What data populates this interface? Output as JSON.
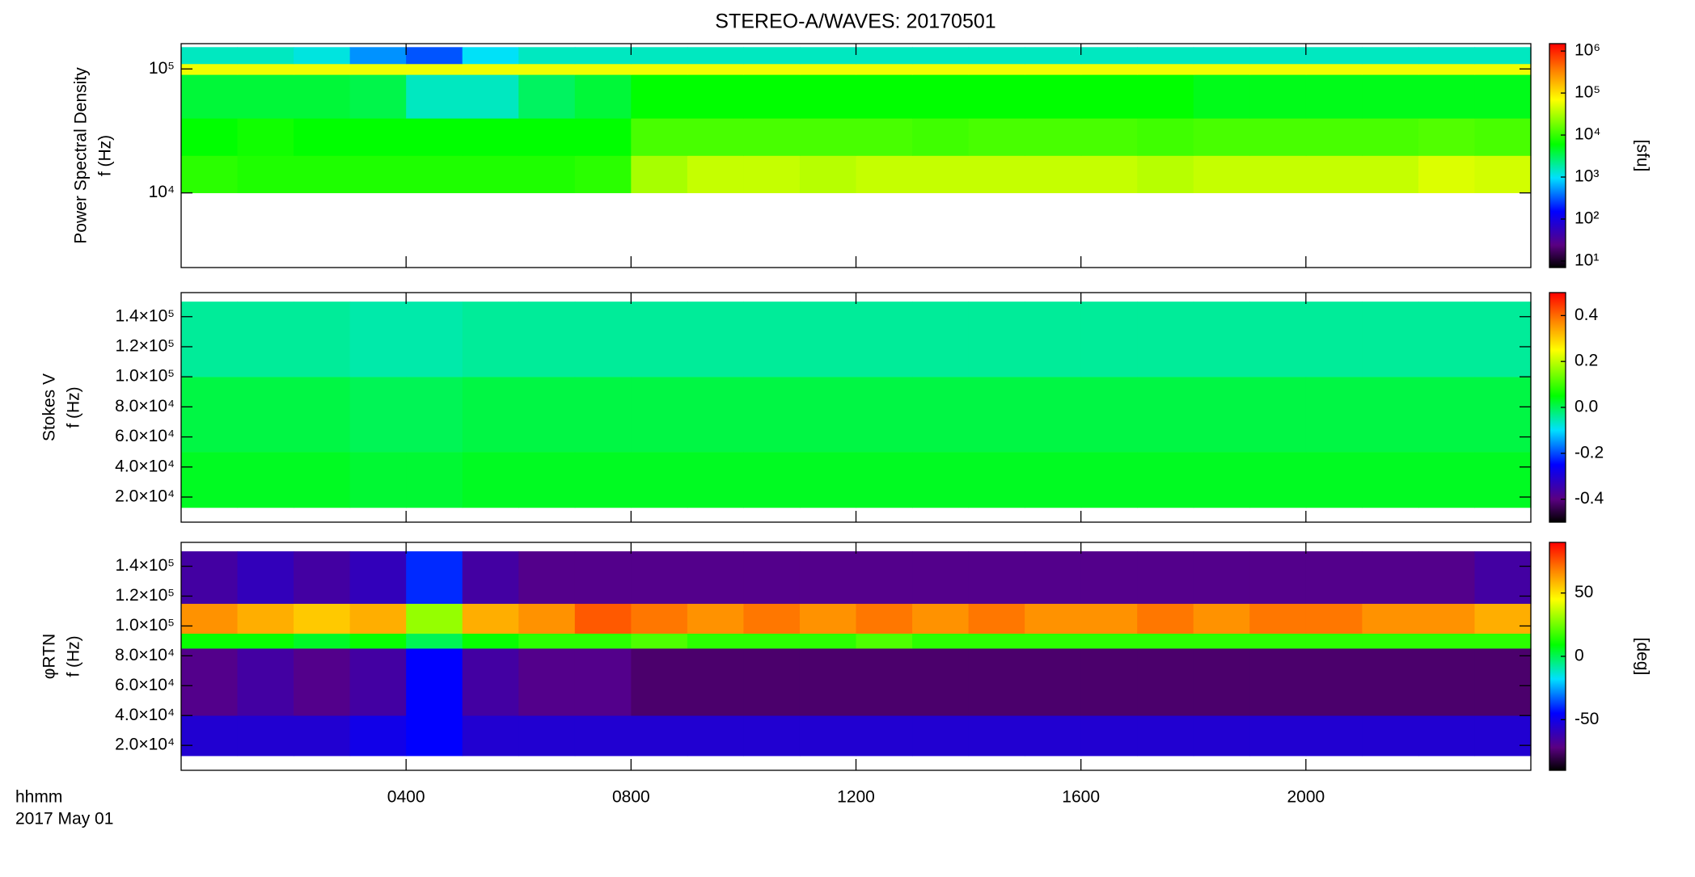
{
  "chart_data": [
    {
      "type": "heatmap",
      "title": "STEREO-A/WAVES: 20170501",
      "ylabel": [
        "Power Spectral Density",
        "f (Hz)"
      ],
      "ylog": true,
      "ylim": [
        2500,
        160000
      ],
      "yticks": [
        {
          "value": 10000,
          "label": "10⁴"
        },
        {
          "value": 100000,
          "label": "10⁵"
        }
      ],
      "xlim": [
        0,
        24
      ],
      "y_edges": [
        10000,
        20000,
        40000,
        90000,
        110000,
        150000
      ],
      "z": [
        [
          9000,
          8000,
          8000,
          8000,
          8000,
          8000,
          8000,
          9000,
          30000,
          40000,
          40000,
          35000,
          40000,
          40000,
          40000,
          40000,
          40000,
          35000,
          40000,
          40000,
          40000,
          40000,
          50000,
          45000
        ],
        [
          6000,
          7000,
          6000,
          6000,
          6000,
          6000,
          6000,
          6000,
          12000,
          12000,
          12000,
          12000,
          12000,
          11000,
          12000,
          12000,
          12000,
          11000,
          12000,
          12000,
          12000,
          12000,
          13000,
          12000
        ],
        [
          4000,
          4000,
          4000,
          3500,
          1500,
          1500,
          3000,
          4000,
          6000,
          6000,
          6000,
          6000,
          6000,
          6000,
          6000,
          6000,
          6000,
          6000,
          5000,
          5000,
          5000,
          5000,
          5000,
          5000
        ],
        [
          60000,
          60000,
          60000,
          60000,
          60000,
          60000,
          60000,
          60000,
          60000,
          60000,
          60000,
          60000,
          60000,
          60000,
          60000,
          60000,
          60000,
          60000,
          60000,
          60000,
          60000,
          60000,
          60000,
          60000
        ],
        [
          1500,
          1500,
          1200,
          500,
          300,
          1000,
          1500,
          1500,
          1500,
          1500,
          1500,
          1500,
          1500,
          1500,
          1500,
          1500,
          1500,
          1500,
          1500,
          1500,
          1500,
          1500,
          1500,
          1500
        ]
      ],
      "zlog": true,
      "zlim": [
        7,
        1500000
      ],
      "zticks": [
        {
          "value": 10,
          "label": "10¹"
        },
        {
          "value": 100,
          "label": "10²"
        },
        {
          "value": 1000,
          "label": "10³"
        },
        {
          "value": 10000,
          "label": "10⁴"
        },
        {
          "value": 100000,
          "label": "10⁵"
        },
        {
          "value": 1000000,
          "label": "10⁶"
        }
      ],
      "colorbar_label": "[sfu]"
    },
    {
      "type": "heatmap",
      "ylabel": [
        "Stokes V",
        "f (Hz)"
      ],
      "ylim": [
        3300,
        156000
      ],
      "yticks": [
        {
          "value": 20000,
          "label": "2.0×10⁴"
        },
        {
          "value": 40000,
          "label": "4.0×10⁴"
        },
        {
          "value": 60000,
          "label": "6.0×10⁴"
        },
        {
          "value": 80000,
          "label": "8.0×10⁴"
        },
        {
          "value": 100000,
          "label": "1.0×10⁵"
        },
        {
          "value": 120000,
          "label": "1.2×10⁵"
        },
        {
          "value": 140000,
          "label": "1.4×10⁵"
        }
      ],
      "xlim": [
        0,
        24
      ],
      "y_edges": [
        13000,
        50000,
        100000,
        150000
      ],
      "z": [
        [
          0.03,
          0.03,
          0.03,
          0.02,
          0.02,
          0.03,
          0.03,
          0.03,
          0.03,
          0.03,
          0.03,
          0.03,
          0.03,
          0.03,
          0.03,
          0.03,
          0.03,
          0.03,
          0.03,
          0.03,
          0.03,
          0.03,
          0.03,
          0.03
        ],
        [
          0.01,
          0.01,
          0.01,
          0.0,
          0.0,
          0.01,
          0.01,
          0.01,
          0.01,
          0.01,
          0.01,
          0.01,
          0.01,
          0.01,
          0.01,
          0.01,
          0.01,
          0.01,
          0.01,
          0.01,
          0.01,
          0.01,
          0.01,
          0.01
        ],
        [
          -0.04,
          -0.04,
          -0.04,
          -0.05,
          -0.05,
          -0.04,
          -0.04,
          -0.04,
          -0.04,
          -0.04,
          -0.04,
          -0.04,
          -0.04,
          -0.04,
          -0.04,
          -0.04,
          -0.04,
          -0.04,
          -0.04,
          -0.04,
          -0.04,
          -0.04,
          -0.04,
          -0.04
        ]
      ],
      "zlim": [
        -0.5,
        0.5
      ],
      "zticks": [
        -0.4,
        -0.2,
        {
          "value": 0,
          "label": "0.0"
        },
        0.2,
        0.4
      ]
    },
    {
      "type": "heatmap",
      "ylabel": [
        "φRTN",
        "f (Hz)"
      ],
      "ylim": [
        3300,
        156000
      ],
      "yticks": [
        {
          "value": 20000,
          "label": "2.0×10⁴"
        },
        {
          "value": 40000,
          "label": "4.0×10⁴"
        },
        {
          "value": 60000,
          "label": "6.0×10⁴"
        },
        {
          "value": 80000,
          "label": "8.0×10⁴"
        },
        {
          "value": 100000,
          "label": "1.0×10⁵"
        },
        {
          "value": 120000,
          "label": "1.2×10⁵"
        },
        {
          "value": 140000,
          "label": "1.4×10⁵"
        }
      ],
      "xlim": [
        0,
        24
      ],
      "xticks": [
        {
          "value": 4,
          "label": "0400"
        },
        {
          "value": 8,
          "label": "0800"
        },
        {
          "value": 12,
          "label": "1200"
        },
        {
          "value": 16,
          "label": "1600"
        },
        {
          "value": 20,
          "label": "2000"
        }
      ],
      "xlabel": [
        "hhmm",
        "2017 May 01"
      ],
      "y_edges": [
        13000,
        40000,
        85000,
        95000,
        115000,
        150000
      ],
      "z": [
        [
          -55,
          -55,
          -55,
          -50,
          -45,
          -55,
          -55,
          -55,
          -55,
          -55,
          -55,
          -55,
          -55,
          -55,
          -55,
          -55,
          -55,
          -55,
          -55,
          -55,
          -55,
          -55,
          -55,
          -55
        ],
        [
          -70,
          -65,
          -70,
          -65,
          -45,
          -65,
          -70,
          -70,
          -75,
          -75,
          -75,
          -75,
          -75,
          -75,
          -75,
          -75,
          -75,
          -75,
          -75,
          -75,
          -75,
          -75,
          -75,
          -75
        ],
        [
          10,
          10,
          5,
          10,
          0,
          10,
          15,
          15,
          20,
          15,
          15,
          15,
          20,
          15,
          15,
          15,
          15,
          15,
          15,
          15,
          15,
          15,
          15,
          15
        ],
        [
          65,
          60,
          55,
          60,
          30,
          60,
          65,
          75,
          70,
          65,
          70,
          65,
          70,
          65,
          70,
          65,
          65,
          70,
          65,
          70,
          70,
          65,
          65,
          60
        ],
        [
          -65,
          -60,
          -65,
          -60,
          -40,
          -65,
          -70,
          -70,
          -70,
          -70,
          -70,
          -70,
          -70,
          -70,
          -70,
          -70,
          -70,
          -70,
          -70,
          -70,
          -70,
          -70,
          -70,
          -65
        ]
      ],
      "zlim": [
        -90,
        90
      ],
      "zticks": [
        -50,
        0,
        50
      ],
      "colorbar_label": "[deg]"
    }
  ]
}
